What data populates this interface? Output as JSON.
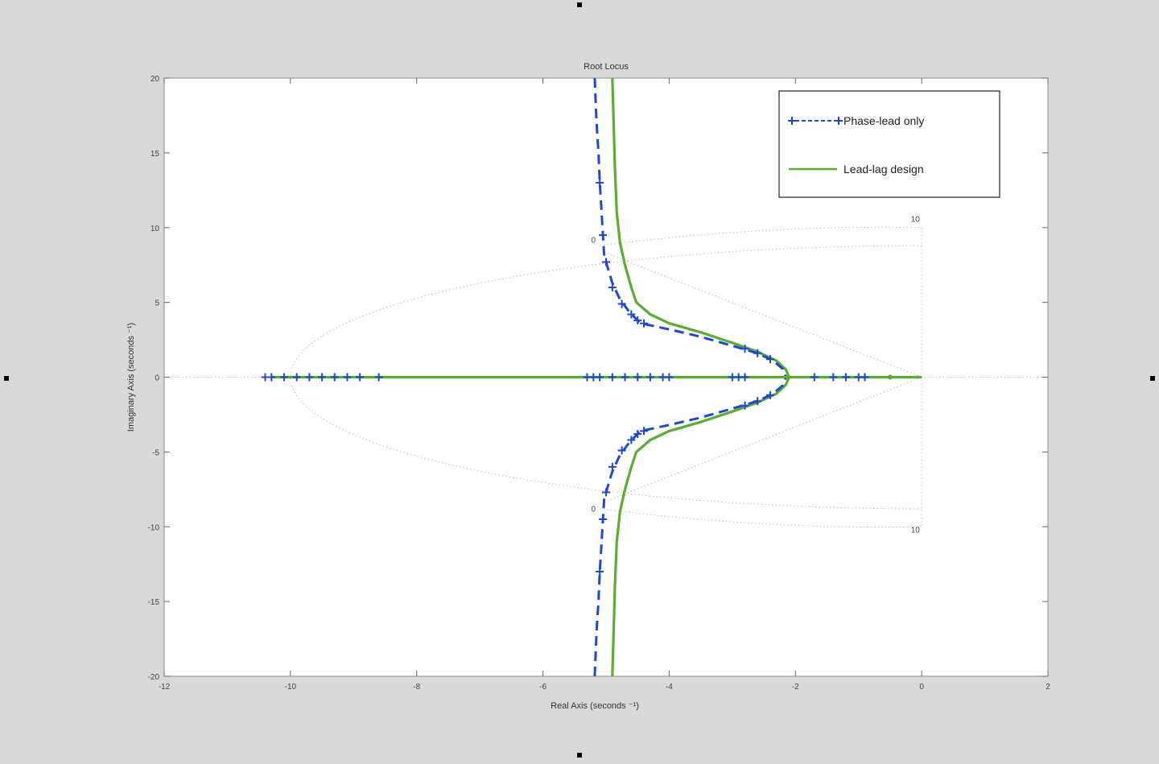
{
  "colors": {
    "figure_bg": "#d9d9d9",
    "axes_bg": "#ffffff",
    "phase_lead": "#1f47d2",
    "lead_lag": "#5aad32",
    "grid": "#bdbdbd"
  },
  "chart_data": {
    "type": "line",
    "title": "Root Locus",
    "xlabel": "Real Axis (seconds ⁻¹)",
    "ylabel": "Imaginary Axis (seconds ⁻¹)",
    "xlim": [
      -12,
      2
    ],
    "ylim": [
      -20,
      20
    ],
    "xticks": [
      -12,
      -10,
      -8,
      -6,
      -4,
      -2,
      0,
      2
    ],
    "yticks": [
      -20,
      -15,
      -10,
      -5,
      0,
      5,
      10,
      15,
      20
    ],
    "xtick_labels": [
      "-12",
      "-10",
      "-8",
      "-6",
      "-4",
      "-2",
      "0",
      "2"
    ],
    "ytick_labels": [
      "-20",
      "-15",
      "-10",
      "-5",
      "0",
      "5",
      "10",
      "15",
      "20"
    ],
    "legend_position": "top-right",
    "grid_annotations": [
      {
        "text": "10",
        "x": -0.1,
        "y": 10.4
      },
      {
        "text": "0",
        "x": -5.2,
        "y": 9.0
      },
      {
        "text": "0",
        "x": -5.2,
        "y": -9.0
      },
      {
        "text": "10",
        "x": -0.1,
        "y": -10.4
      }
    ],
    "series": [
      {
        "name": "Phase-lead only",
        "style": "dashed-plus",
        "branches": [
          [
            [
              -5.18,
              20
            ],
            [
              -5.15,
              17
            ],
            [
              -5.12,
              15
            ],
            [
              -5.1,
              13
            ],
            [
              -5.07,
              11
            ],
            [
              -5.05,
              9.5
            ],
            [
              -5.03,
              8.2
            ],
            [
              -4.98,
              7.4
            ],
            [
              -4.9,
              6.3
            ],
            [
              -4.78,
              5.2
            ],
            [
              -4.62,
              4.3
            ],
            [
              -4.45,
              3.6
            ],
            [
              -4.0,
              3.2
            ],
            [
              -3.5,
              2.7
            ],
            [
              -3.0,
              2.1
            ],
            [
              -2.6,
              1.6
            ],
            [
              -2.35,
              1.1
            ],
            [
              -2.2,
              0.55
            ],
            [
              -2.15,
              0
            ]
          ],
          [
            [
              -5.18,
              -20
            ],
            [
              -5.15,
              -17
            ],
            [
              -5.12,
              -15
            ],
            [
              -5.1,
              -13
            ],
            [
              -5.07,
              -11
            ],
            [
              -5.05,
              -9.5
            ],
            [
              -5.03,
              -8.2
            ],
            [
              -4.98,
              -7.4
            ],
            [
              -4.9,
              -6.3
            ],
            [
              -4.78,
              -5.2
            ],
            [
              -4.62,
              -4.3
            ],
            [
              -4.45,
              -3.6
            ],
            [
              -4.0,
              -3.2
            ],
            [
              -3.5,
              -2.7
            ],
            [
              -3.0,
              -2.1
            ],
            [
              -2.6,
              -1.6
            ],
            [
              -2.35,
              -1.1
            ],
            [
              -2.2,
              -0.55
            ],
            [
              -2.15,
              0
            ]
          ],
          [
            [
              -10.4,
              0
            ],
            [
              -5.3,
              0
            ]
          ],
          [
            [
              -5.4,
              0
            ],
            [
              -4.0,
              0
            ]
          ],
          [
            [
              -3.0,
              0
            ],
            [
              -0.9,
              0
            ]
          ]
        ],
        "markers": [
          [
            -5.1,
            13
          ],
          [
            -5.05,
            9.5
          ],
          [
            -5.0,
            7.7
          ],
          [
            -4.9,
            6.0
          ],
          [
            -4.75,
            4.9
          ],
          [
            -4.6,
            4.2
          ],
          [
            -4.5,
            3.8
          ],
          [
            -4.4,
            3.6
          ],
          [
            -5.1,
            -13
          ],
          [
            -5.05,
            -9.5
          ],
          [
            -5.0,
            -7.7
          ],
          [
            -4.9,
            -6.0
          ],
          [
            -4.75,
            -4.9
          ],
          [
            -4.6,
            -4.2
          ],
          [
            -4.5,
            -3.8
          ],
          [
            -4.4,
            -3.6
          ],
          [
            -2.8,
            1.9
          ],
          [
            -2.6,
            1.6
          ],
          [
            -2.4,
            1.2
          ],
          [
            -2.8,
            -1.9
          ],
          [
            -2.6,
            -1.6
          ],
          [
            -2.4,
            -1.2
          ],
          [
            -10.4,
            0
          ],
          [
            -10.3,
            0
          ],
          [
            -10.1,
            0
          ],
          [
            -9.9,
            0
          ],
          [
            -9.7,
            0
          ],
          [
            -9.5,
            0
          ],
          [
            -9.3,
            0
          ],
          [
            -9.1,
            0
          ],
          [
            -8.9,
            0
          ],
          [
            -8.6,
            0
          ],
          [
            -5.3,
            0
          ],
          [
            -5.2,
            0
          ],
          [
            -5.1,
            0
          ],
          [
            -4.9,
            0
          ],
          [
            -4.7,
            0
          ],
          [
            -4.5,
            0
          ],
          [
            -4.3,
            0
          ],
          [
            -4.1,
            0
          ],
          [
            -4.0,
            0
          ],
          [
            -3.0,
            0
          ],
          [
            -2.9,
            0
          ],
          [
            -2.8,
            0
          ],
          [
            -1.7,
            0
          ],
          [
            -1.4,
            0
          ],
          [
            -1.2,
            0
          ],
          [
            -1.0,
            0
          ],
          [
            -0.9,
            0
          ]
        ]
      },
      {
        "name": "Lead-lag design",
        "style": "solid",
        "branches": [
          [
            [
              -4.9,
              20
            ],
            [
              -4.88,
              17
            ],
            [
              -4.86,
              14
            ],
            [
              -4.83,
              11
            ],
            [
              -4.78,
              9
            ],
            [
              -4.7,
              7.5
            ],
            [
              -4.6,
              6.0
            ],
            [
              -4.52,
              5.0
            ],
            [
              -4.3,
              4.2
            ],
            [
              -4.0,
              3.6
            ],
            [
              -3.5,
              3.0
            ],
            [
              -3.0,
              2.3
            ],
            [
              -2.6,
              1.7
            ],
            [
              -2.3,
              1.1
            ],
            [
              -2.15,
              0.5
            ],
            [
              -2.1,
              0
            ]
          ],
          [
            [
              -4.9,
              -20
            ],
            [
              -4.88,
              -17
            ],
            [
              -4.86,
              -14
            ],
            [
              -4.83,
              -11
            ],
            [
              -4.78,
              -9
            ],
            [
              -4.7,
              -7.5
            ],
            [
              -4.6,
              -6.0
            ],
            [
              -4.52,
              -5.0
            ],
            [
              -4.3,
              -4.2
            ],
            [
              -4.0,
              -3.6
            ],
            [
              -3.5,
              -3.0
            ],
            [
              -3.0,
              -2.3
            ],
            [
              -2.6,
              -1.7
            ],
            [
              -2.3,
              -1.1
            ],
            [
              -2.15,
              -0.5
            ],
            [
              -2.1,
              0
            ]
          ],
          [
            [
              -10.3,
              0
            ],
            [
              0,
              0
            ]
          ]
        ],
        "markers": [
          [
            -0.5,
            0
          ]
        ]
      }
    ]
  }
}
